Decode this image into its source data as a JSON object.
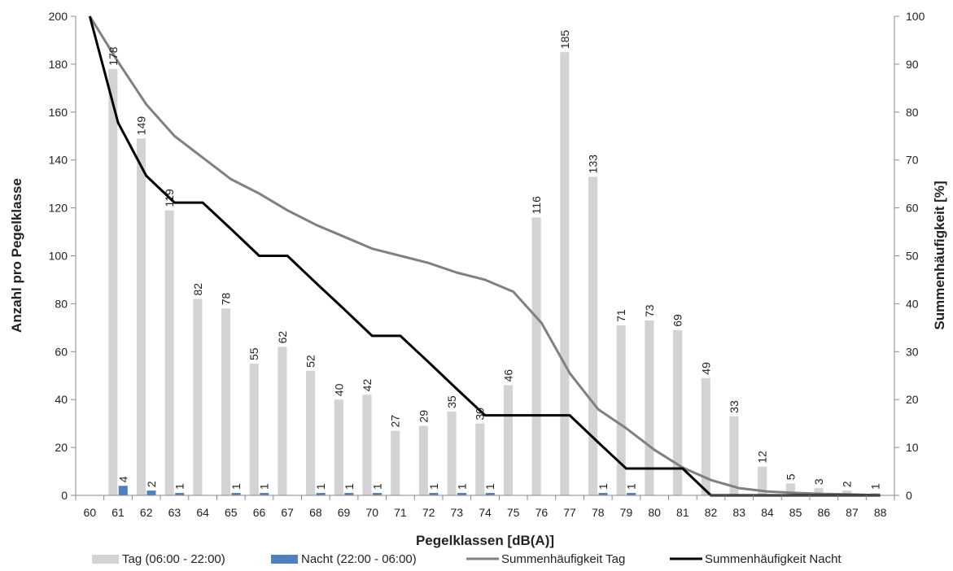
{
  "chart_data": {
    "type": "bar",
    "categories": [
      "60",
      "61",
      "62",
      "63",
      "64",
      "65",
      "66",
      "67",
      "68",
      "69",
      "70",
      "71",
      "72",
      "73",
      "74",
      "75",
      "76",
      "77",
      "78",
      "79",
      "80",
      "81",
      "82",
      "83",
      "84",
      "85",
      "86",
      "87",
      "88"
    ],
    "xlabel": "Pegelklassen [dB(A)]",
    "ylabel": "Anzahl pro Pegelklasse",
    "y2label": "Summenhäufigkeit [%]",
    "ylim": [
      0,
      200
    ],
    "y2lim": [
      0,
      100
    ],
    "yticks": [
      "0",
      "20",
      "40",
      "60",
      "80",
      "100",
      "120",
      "140",
      "160",
      "180",
      "200"
    ],
    "y2ticks": [
      "0",
      "10",
      "20",
      "30",
      "40",
      "50",
      "60",
      "70",
      "80",
      "90",
      "100"
    ],
    "grid": false,
    "legend_position": "bottom",
    "series": [
      {
        "name": "Tag (06:00 - 22:00)",
        "kind": "bar",
        "axis": "left",
        "color": "#d3d3d3",
        "values": [
          null,
          178,
          149,
          119,
          82,
          78,
          55,
          62,
          52,
          40,
          42,
          27,
          29,
          35,
          30,
          46,
          116,
          185,
          133,
          71,
          73,
          69,
          49,
          33,
          12,
          5,
          3,
          2,
          1
        ]
      },
      {
        "name": "Nacht (22:00 - 06:00)",
        "kind": "bar",
        "axis": "left",
        "color": "#4f81bd",
        "values": [
          null,
          4,
          2,
          1,
          null,
          1,
          1,
          null,
          1,
          1,
          1,
          null,
          1,
          1,
          1,
          null,
          null,
          null,
          1,
          1,
          null,
          null,
          null,
          null,
          null,
          null,
          null,
          null,
          null
        ]
      },
      {
        "name": "Summenhäufigkeit Tag",
        "kind": "line",
        "axis": "right",
        "color": "#808080",
        "values": [
          100,
          90.5,
          81.6,
          75.0,
          70.5,
          66.0,
          63.0,
          59.5,
          56.5,
          54.0,
          51.5,
          50.0,
          48.5,
          46.5,
          45.0,
          42.5,
          36.0,
          25.5,
          18.0,
          14.0,
          9.5,
          5.8,
          3.2,
          1.5,
          0.8,
          0.5,
          0.3,
          0.2,
          0
        ]
      },
      {
        "name": "Summenhäufigkeit Nacht",
        "kind": "line",
        "axis": "right",
        "color": "#000000",
        "values": [
          100,
          77.8,
          66.7,
          61.1,
          61.1,
          55.6,
          50.0,
          50.0,
          44.4,
          38.9,
          33.3,
          33.3,
          27.8,
          22.2,
          16.7,
          16.7,
          16.7,
          16.7,
          11.1,
          5.6,
          5.6,
          5.6,
          0,
          0,
          0,
          0,
          0,
          0,
          0
        ]
      }
    ]
  }
}
